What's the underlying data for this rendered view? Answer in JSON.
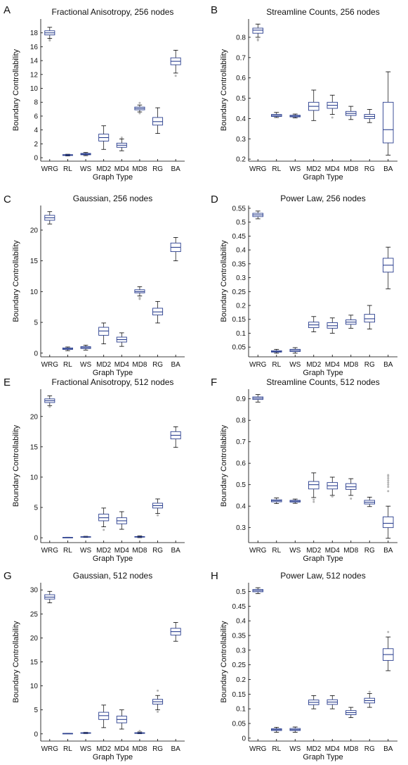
{
  "figure": {
    "colors": {
      "box": "#2b3f8f",
      "median": "#2b3f8f",
      "whisker": "#000000",
      "outlier": "#b5b5b5",
      "axis": "#000000"
    }
  },
  "chart_data": [
    {
      "letter": "A",
      "type": "box",
      "title": "Fractional Anisotropy, 256 nodes",
      "xlabel": "Graph Type",
      "ylabel": "Boundary Controllability",
      "categories": [
        "WRG",
        "RL",
        "WS",
        "MD2",
        "MD4",
        "MD8",
        "RG",
        "BA"
      ],
      "ylim": [
        -0.5,
        20
      ],
      "yticks": [
        0,
        2,
        4,
        6,
        8,
        10,
        12,
        14,
        16,
        18
      ],
      "boxes": [
        {
          "min": 17.2,
          "q1": 17.7,
          "median": 18.0,
          "q3": 18.3,
          "max": 18.8,
          "outliers": [
            16.9,
            17.0
          ]
        },
        {
          "min": 0.25,
          "q1": 0.32,
          "median": 0.38,
          "q3": 0.44,
          "max": 0.5,
          "outliers": []
        },
        {
          "min": 0.3,
          "q1": 0.42,
          "median": 0.52,
          "q3": 0.62,
          "max": 0.75,
          "outliers": []
        },
        {
          "min": 1.2,
          "q1": 2.4,
          "median": 2.9,
          "q3": 3.4,
          "max": 4.6,
          "outliers": []
        },
        {
          "min": 1.0,
          "q1": 1.5,
          "median": 1.8,
          "q3": 2.1,
          "max": 2.7,
          "outliers": [
            2.9
          ]
        },
        {
          "min": 6.6,
          "q1": 6.9,
          "median": 7.1,
          "q3": 7.3,
          "max": 7.6,
          "outliers": [
            6.4,
            7.9
          ]
        },
        {
          "min": 3.5,
          "q1": 4.7,
          "median": 5.2,
          "q3": 5.8,
          "max": 7.2,
          "outliers": []
        },
        {
          "min": 12.2,
          "q1": 13.4,
          "median": 13.9,
          "q3": 14.4,
          "max": 15.5,
          "outliers": [
            11.8
          ]
        }
      ]
    },
    {
      "letter": "B",
      "type": "box",
      "title": "Streamline Counts, 256 nodes",
      "xlabel": "Graph Type",
      "ylabel": "Boundary Controllability",
      "categories": [
        "WRG",
        "RL",
        "WS",
        "MD2",
        "MD4",
        "MD8",
        "RG",
        "BA"
      ],
      "ylim": [
        0.19,
        0.89
      ],
      "yticks": [
        0.2,
        0.3,
        0.4,
        0.5,
        0.6,
        0.7,
        0.8
      ],
      "boxes": [
        {
          "min": 0.8,
          "q1": 0.82,
          "median": 0.835,
          "q3": 0.845,
          "max": 0.865,
          "outliers": [
            0.785,
            0.79
          ]
        },
        {
          "min": 0.405,
          "q1": 0.41,
          "median": 0.415,
          "q3": 0.42,
          "max": 0.43,
          "outliers": []
        },
        {
          "min": 0.403,
          "q1": 0.408,
          "median": 0.412,
          "q3": 0.416,
          "max": 0.422,
          "outliers": []
        },
        {
          "min": 0.39,
          "q1": 0.44,
          "median": 0.46,
          "q3": 0.48,
          "max": 0.54,
          "outliers": []
        },
        {
          "min": 0.42,
          "q1": 0.45,
          "median": 0.465,
          "q3": 0.48,
          "max": 0.515,
          "outliers": [
            0.405
          ]
        },
        {
          "min": 0.395,
          "q1": 0.415,
          "median": 0.425,
          "q3": 0.435,
          "max": 0.46,
          "outliers": []
        },
        {
          "min": 0.38,
          "q1": 0.4,
          "median": 0.41,
          "q3": 0.42,
          "max": 0.445,
          "outliers": []
        },
        {
          "min": 0.22,
          "q1": 0.28,
          "median": 0.345,
          "q3": 0.48,
          "max": 0.63,
          "outliers": []
        }
      ]
    },
    {
      "letter": "C",
      "type": "box",
      "title": "Gaussian, 256 nodes",
      "xlabel": "Graph Type",
      "ylabel": "Boundary Controllability",
      "categories": [
        "WRG",
        "RL",
        "WS",
        "MD2",
        "MD4",
        "MD8",
        "RG",
        "BA"
      ],
      "ylim": [
        -0.6,
        24
      ],
      "yticks": [
        0,
        5,
        10,
        15,
        20
      ],
      "boxes": [
        {
          "min": 21.0,
          "q1": 21.6,
          "median": 22.0,
          "q3": 22.4,
          "max": 23.0,
          "outliers": []
        },
        {
          "min": 0.4,
          "q1": 0.6,
          "median": 0.7,
          "q3": 0.85,
          "max": 1.0,
          "outliers": []
        },
        {
          "min": 0.5,
          "q1": 0.75,
          "median": 0.9,
          "q3": 1.05,
          "max": 1.3,
          "outliers": []
        },
        {
          "min": 1.5,
          "q1": 2.9,
          "median": 3.6,
          "q3": 4.2,
          "max": 4.9,
          "outliers": []
        },
        {
          "min": 1.1,
          "q1": 1.8,
          "median": 2.2,
          "q3": 2.6,
          "max": 3.3,
          "outliers": []
        },
        {
          "min": 9.3,
          "q1": 9.8,
          "median": 10.0,
          "q3": 10.3,
          "max": 10.8,
          "outliers": [
            9.0,
            8.8
          ]
        },
        {
          "min": 4.9,
          "q1": 6.2,
          "median": 6.7,
          "q3": 7.3,
          "max": 8.4,
          "outliers": []
        },
        {
          "min": 15.0,
          "q1": 16.5,
          "median": 17.2,
          "q3": 17.9,
          "max": 18.8,
          "outliers": []
        }
      ]
    },
    {
      "letter": "D",
      "type": "box",
      "title": "Power Law, 256 nodes",
      "xlabel": "Graph Type",
      "ylabel": "Boundary Controllability",
      "categories": [
        "WRG",
        "RL",
        "WS",
        "MD2",
        "MD4",
        "MD8",
        "RG",
        "BA"
      ],
      "ylim": [
        0.015,
        0.56
      ],
      "yticks": [
        0.05,
        0.1,
        0.15,
        0.2,
        0.25,
        0.3,
        0.35,
        0.4,
        0.45,
        0.5,
        0.55
      ],
      "boxes": [
        {
          "min": 0.512,
          "q1": 0.52,
          "median": 0.526,
          "q3": 0.532,
          "max": 0.54,
          "outliers": []
        },
        {
          "min": 0.028,
          "q1": 0.032,
          "median": 0.034,
          "q3": 0.037,
          "max": 0.042,
          "outliers": []
        },
        {
          "min": 0.028,
          "q1": 0.034,
          "median": 0.038,
          "q3": 0.042,
          "max": 0.048,
          "outliers": []
        },
        {
          "min": 0.105,
          "q1": 0.12,
          "median": 0.13,
          "q3": 0.14,
          "max": 0.16,
          "outliers": []
        },
        {
          "min": 0.1,
          "q1": 0.118,
          "median": 0.127,
          "q3": 0.138,
          "max": 0.155,
          "outliers": []
        },
        {
          "min": 0.118,
          "q1": 0.132,
          "median": 0.14,
          "q3": 0.148,
          "max": 0.165,
          "outliers": []
        },
        {
          "min": 0.115,
          "q1": 0.14,
          "median": 0.152,
          "q3": 0.168,
          "max": 0.2,
          "outliers": []
        },
        {
          "min": 0.26,
          "q1": 0.32,
          "median": 0.345,
          "q3": 0.37,
          "max": 0.41,
          "outliers": []
        }
      ]
    },
    {
      "letter": "E",
      "type": "box",
      "title": "Fractional Anisotropy, 512 nodes",
      "xlabel": "Graph Type",
      "ylabel": "Boundary Controllability",
      "categories": [
        "WRG",
        "RL",
        "WS",
        "MD2",
        "MD4",
        "MD8",
        "RG",
        "BA"
      ],
      "ylim": [
        -0.8,
        24.5
      ],
      "yticks": [
        0,
        5,
        10,
        15,
        20
      ],
      "boxes": [
        {
          "min": 21.8,
          "q1": 22.3,
          "median": 22.6,
          "q3": 22.9,
          "max": 23.4,
          "outliers": [
            21.6
          ]
        },
        {
          "min": 0.03,
          "q1": 0.05,
          "median": 0.06,
          "q3": 0.07,
          "max": 0.09,
          "outliers": []
        },
        {
          "min": 0.05,
          "q1": 0.1,
          "median": 0.14,
          "q3": 0.18,
          "max": 0.24,
          "outliers": []
        },
        {
          "min": 1.8,
          "q1": 2.8,
          "median": 3.3,
          "q3": 3.9,
          "max": 4.9,
          "outliers": [
            1.3
          ]
        },
        {
          "min": 1.4,
          "q1": 2.3,
          "median": 2.8,
          "q3": 3.3,
          "max": 4.3,
          "outliers": []
        },
        {
          "min": 0.02,
          "q1": 0.1,
          "median": 0.14,
          "q3": 0.2,
          "max": 0.3,
          "outliers": []
        },
        {
          "min": 4.0,
          "q1": 4.9,
          "median": 5.3,
          "q3": 5.7,
          "max": 6.4,
          "outliers": [
            3.7
          ]
        },
        {
          "min": 14.9,
          "q1": 16.3,
          "median": 16.9,
          "q3": 17.5,
          "max": 18.3,
          "outliers": []
        }
      ]
    },
    {
      "letter": "F",
      "type": "box",
      "title": "Streamline Counts, 512 nodes",
      "xlabel": "Graph Type",
      "ylabel": "Boundary Controllability",
      "categories": [
        "WRG",
        "RL",
        "WS",
        "MD2",
        "MD4",
        "MD8",
        "RG",
        "BA"
      ],
      "ylim": [
        0.23,
        0.945
      ],
      "yticks": [
        0.3,
        0.4,
        0.5,
        0.6,
        0.7,
        0.8,
        0.9
      ],
      "boxes": [
        {
          "min": 0.885,
          "q1": 0.897,
          "median": 0.903,
          "q3": 0.909,
          "max": 0.92,
          "outliers": []
        },
        {
          "min": 0.412,
          "q1": 0.42,
          "median": 0.425,
          "q3": 0.43,
          "max": 0.438,
          "outliers": []
        },
        {
          "min": 0.413,
          "q1": 0.419,
          "median": 0.423,
          "q3": 0.427,
          "max": 0.433,
          "outliers": []
        },
        {
          "min": 0.44,
          "q1": 0.48,
          "median": 0.5,
          "q3": 0.515,
          "max": 0.555,
          "outliers": [
            0.43,
            0.42
          ]
        },
        {
          "min": 0.45,
          "q1": 0.48,
          "median": 0.495,
          "q3": 0.51,
          "max": 0.535,
          "outliers": [
            0.445
          ]
        },
        {
          "min": 0.45,
          "q1": 0.478,
          "median": 0.49,
          "q3": 0.505,
          "max": 0.528,
          "outliers": [
            0.435
          ]
        },
        {
          "min": 0.398,
          "q1": 0.41,
          "median": 0.418,
          "q3": 0.427,
          "max": 0.442,
          "outliers": []
        },
        {
          "min": 0.25,
          "q1": 0.3,
          "median": 0.32,
          "q3": 0.35,
          "max": 0.4,
          "outliers": [
            0.47,
            0.49,
            0.5,
            0.51,
            0.52,
            0.53,
            0.54,
            0.545
          ]
        }
      ]
    },
    {
      "letter": "G",
      "type": "box",
      "title": "Gaussian, 512 nodes",
      "xlabel": "Graph Type",
      "ylabel": "Boundary Controllability",
      "categories": [
        "WRG",
        "RL",
        "WS",
        "MD2",
        "MD4",
        "MD8",
        "RG",
        "BA"
      ],
      "ylim": [
        -1.5,
        31.5
      ],
      "yticks": [
        0,
        5,
        10,
        15,
        20,
        25,
        30
      ],
      "boxes": [
        {
          "min": 27.3,
          "q1": 28.1,
          "median": 28.5,
          "q3": 29.0,
          "max": 29.7,
          "outliers": []
        },
        {
          "min": 0.03,
          "q1": 0.06,
          "median": 0.08,
          "q3": 0.1,
          "max": 0.13,
          "outliers": []
        },
        {
          "min": 0.05,
          "q1": 0.12,
          "median": 0.18,
          "q3": 0.24,
          "max": 0.32,
          "outliers": []
        },
        {
          "min": 1.3,
          "q1": 3.0,
          "median": 3.8,
          "q3": 4.5,
          "max": 6.0,
          "outliers": []
        },
        {
          "min": 1.0,
          "q1": 2.3,
          "median": 3.0,
          "q3": 3.7,
          "max": 5.0,
          "outliers": []
        },
        {
          "min": 0.03,
          "q1": 0.1,
          "median": 0.16,
          "q3": 0.24,
          "max": 0.4,
          "outliers": [
            0.6
          ]
        },
        {
          "min": 5.0,
          "q1": 6.2,
          "median": 6.7,
          "q3": 7.2,
          "max": 8.0,
          "outliers": [
            4.6,
            9.0
          ]
        },
        {
          "min": 19.3,
          "q1": 20.6,
          "median": 21.3,
          "q3": 22.0,
          "max": 23.2,
          "outliers": []
        }
      ]
    },
    {
      "letter": "H",
      "type": "box",
      "title": "Power Law, 512 nodes",
      "xlabel": "Graph Type",
      "ylabel": "Boundary Controllability",
      "categories": [
        "WRG",
        "RL",
        "WS",
        "MD2",
        "MD4",
        "MD8",
        "RG",
        "BA"
      ],
      "ylim": [
        -0.01,
        0.53
      ],
      "yticks": [
        0,
        0.05,
        0.1,
        0.15,
        0.2,
        0.25,
        0.3,
        0.35,
        0.4,
        0.45,
        0.5
      ],
      "boxes": [
        {
          "min": 0.493,
          "q1": 0.499,
          "median": 0.503,
          "q3": 0.507,
          "max": 0.513,
          "outliers": []
        },
        {
          "min": 0.02,
          "q1": 0.026,
          "median": 0.029,
          "q3": 0.032,
          "max": 0.037,
          "outliers": []
        },
        {
          "min": 0.02,
          "q1": 0.026,
          "median": 0.029,
          "q3": 0.033,
          "max": 0.038,
          "outliers": []
        },
        {
          "min": 0.1,
          "q1": 0.114,
          "median": 0.122,
          "q3": 0.13,
          "max": 0.145,
          "outliers": []
        },
        {
          "min": 0.1,
          "q1": 0.115,
          "median": 0.123,
          "q3": 0.131,
          "max": 0.145,
          "outliers": []
        },
        {
          "min": 0.07,
          "q1": 0.08,
          "median": 0.087,
          "q3": 0.094,
          "max": 0.105,
          "outliers": []
        },
        {
          "min": 0.105,
          "q1": 0.12,
          "median": 0.128,
          "q3": 0.136,
          "max": 0.152,
          "outliers": [
            0.158
          ]
        },
        {
          "min": 0.23,
          "q1": 0.265,
          "median": 0.285,
          "q3": 0.305,
          "max": 0.345,
          "outliers": [
            0.362
          ]
        }
      ]
    }
  ]
}
